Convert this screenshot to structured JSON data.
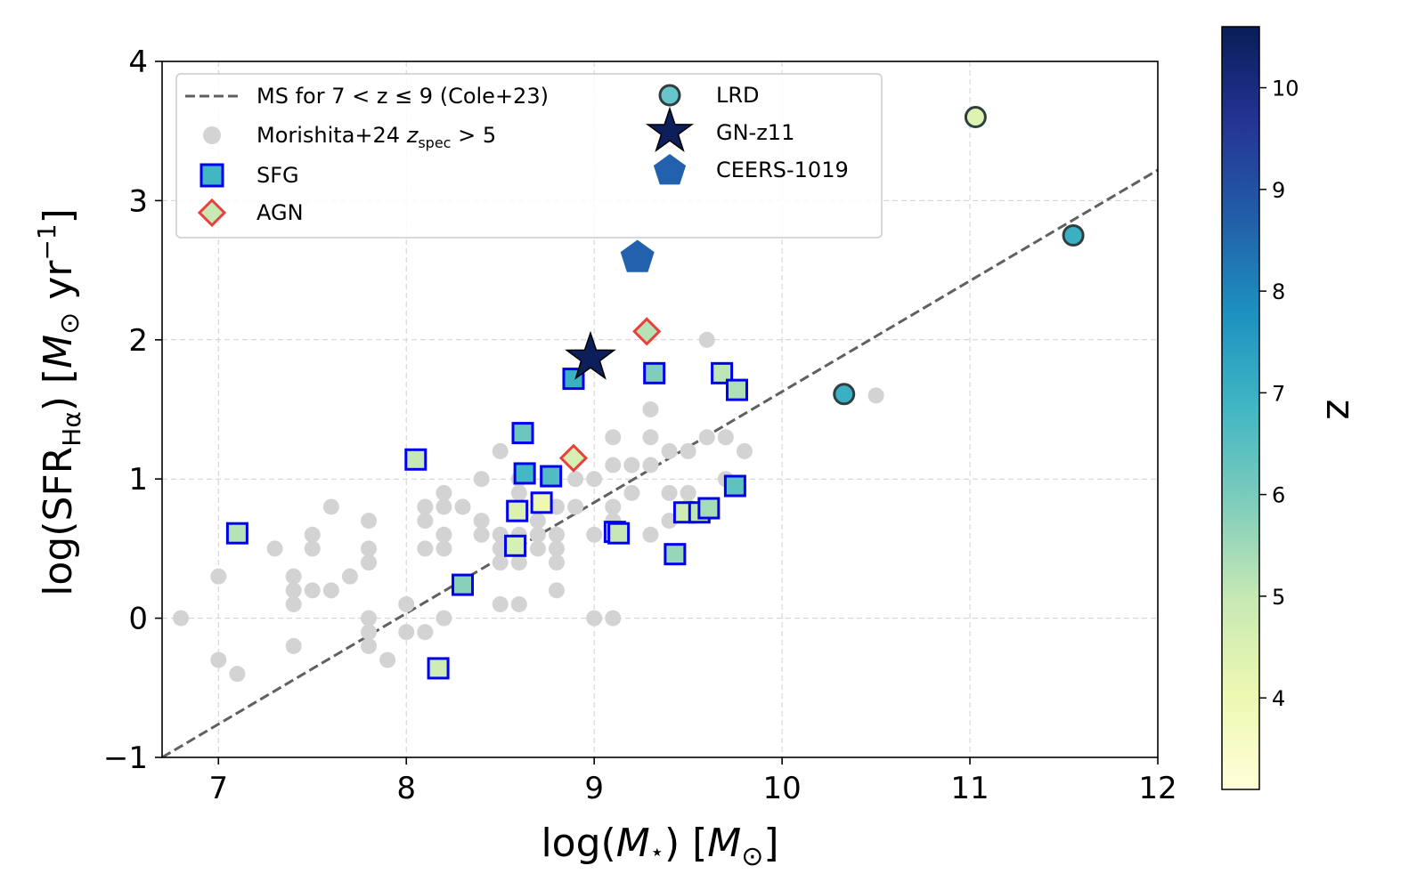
{
  "chart_data": {
    "type": "scatter",
    "xlabel": "log(M⋆) [M⊙]",
    "ylabel": "log(SFR_Hα) [M⊙ yr⁻¹]",
    "xlabel_parts": {
      "a": "log(",
      "b": "M",
      "c": "⋆",
      "d": ") [",
      "e": "M",
      "f": "⊙",
      "g": "]"
    },
    "ylabel_parts": {
      "a": "log(SFR",
      "b": "Hα",
      "c": ") [",
      "d": "M",
      "e": "⊙",
      "f": " yr",
      "g": "−1",
      "h": "]"
    },
    "xlim": [
      6.7,
      12.0
    ],
    "ylim": [
      -1.0,
      4.0
    ],
    "xticks": [
      7,
      8,
      9,
      10,
      11,
      12
    ],
    "yticks": [
      -1,
      0,
      1,
      2,
      3,
      4
    ],
    "xtick_labels": [
      "7",
      "8",
      "9",
      "10",
      "11",
      "12"
    ],
    "ytick_labels": [
      "−1",
      "0",
      "1",
      "2",
      "3",
      "4"
    ],
    "grid": true,
    "legend_position": "upper-left",
    "colorbar": {
      "label": "z",
      "range": [
        3.1,
        10.6
      ],
      "ticks": [
        4,
        5,
        6,
        7,
        8,
        9,
        10
      ],
      "tick_labels": [
        "4",
        "5",
        "6",
        "7",
        "8",
        "9",
        "10"
      ],
      "colormap": "YlGnBu",
      "stops": [
        "#ffffd9",
        "#edf8b1",
        "#c7e9b4",
        "#7fcdbb",
        "#41b6c4",
        "#1d91c0",
        "#225ea8",
        "#253494",
        "#081d58"
      ]
    },
    "main_sequence": {
      "label": "MS for 7 < z ≤ 9 (Cole+23)",
      "x": [
        6.7,
        12.0
      ],
      "y": [
        -1.0,
        3.22
      ],
      "color": "#606060"
    },
    "legend": [
      {
        "key": "ms",
        "label": "MS for 7 < z ≤ 9 (Cole+23)"
      },
      {
        "key": "morishita",
        "label": "Morishita+24",
        "label_z": "z",
        "label_sub": "spec",
        "label_tail": " > 5"
      },
      {
        "key": "sfg",
        "label": "SFG"
      },
      {
        "key": "agn",
        "label": "AGN"
      },
      {
        "key": "lrd",
        "label": "LRD"
      },
      {
        "key": "gnz11",
        "label": "GN-z11"
      },
      {
        "key": "ceers",
        "label": "CEERS-1019"
      }
    ],
    "series": [
      {
        "name": "Morishita+24 zspec > 5",
        "marker": "circle",
        "color": "#d3d3d3",
        "points": [
          [
            6.8,
            0.0
          ],
          [
            7.0,
            0.3
          ],
          [
            7.0,
            -0.3
          ],
          [
            7.1,
            -0.4
          ],
          [
            7.3,
            0.5
          ],
          [
            7.4,
            0.3
          ],
          [
            7.4,
            0.2
          ],
          [
            7.4,
            0.1
          ],
          [
            7.4,
            -0.2
          ],
          [
            7.5,
            0.6
          ],
          [
            7.5,
            0.5
          ],
          [
            7.5,
            0.2
          ],
          [
            7.6,
            0.8
          ],
          [
            7.6,
            0.2
          ],
          [
            7.7,
            0.3
          ],
          [
            7.8,
            0.7
          ],
          [
            7.8,
            0.5
          ],
          [
            7.8,
            0.4
          ],
          [
            7.8,
            0.0
          ],
          [
            7.8,
            -0.1
          ],
          [
            7.8,
            -0.2
          ],
          [
            7.9,
            -0.3
          ],
          [
            8.0,
            0.1
          ],
          [
            8.0,
            -0.1
          ],
          [
            8.1,
            0.8
          ],
          [
            8.1,
            0.7
          ],
          [
            8.1,
            0.5
          ],
          [
            8.1,
            -0.1
          ],
          [
            8.2,
            0.9
          ],
          [
            8.2,
            0.8
          ],
          [
            8.2,
            0.6
          ],
          [
            8.2,
            0.5
          ],
          [
            8.2,
            0.0
          ],
          [
            8.3,
            0.8
          ],
          [
            8.4,
            1.0
          ],
          [
            8.4,
            0.7
          ],
          [
            8.4,
            0.6
          ],
          [
            8.5,
            1.2
          ],
          [
            8.5,
            0.6
          ],
          [
            8.5,
            0.5
          ],
          [
            8.5,
            0.4
          ],
          [
            8.5,
            0.1
          ],
          [
            8.6,
            1.0
          ],
          [
            8.6,
            0.9
          ],
          [
            8.6,
            0.6
          ],
          [
            8.6,
            0.4
          ],
          [
            8.6,
            0.1
          ],
          [
            8.7,
            0.7
          ],
          [
            8.7,
            0.6
          ],
          [
            8.7,
            0.5
          ],
          [
            8.8,
            0.8
          ],
          [
            8.8,
            0.6
          ],
          [
            8.8,
            0.5
          ],
          [
            8.8,
            0.4
          ],
          [
            8.8,
            0.2
          ],
          [
            8.9,
            1.0
          ],
          [
            8.9,
            0.8
          ],
          [
            9.0,
            1.0
          ],
          [
            9.0,
            0.6
          ],
          [
            9.0,
            0.0
          ],
          [
            9.1,
            1.3
          ],
          [
            9.1,
            1.1
          ],
          [
            9.1,
            0.8
          ],
          [
            9.1,
            0.7
          ],
          [
            9.1,
            0.0
          ],
          [
            9.2,
            1.1
          ],
          [
            9.2,
            0.9
          ],
          [
            9.3,
            1.5
          ],
          [
            9.3,
            1.3
          ],
          [
            9.3,
            1.1
          ],
          [
            9.3,
            0.6
          ],
          [
            9.4,
            1.2
          ],
          [
            9.4,
            0.9
          ],
          [
            9.4,
            0.7
          ],
          [
            9.5,
            1.2
          ],
          [
            9.5,
            0.9
          ],
          [
            9.5,
            0.8
          ],
          [
            9.6,
            2.0
          ],
          [
            9.6,
            1.3
          ],
          [
            9.7,
            1.3
          ],
          [
            9.7,
            1.0
          ],
          [
            9.8,
            1.2
          ],
          [
            10.5,
            1.6
          ]
        ]
      },
      {
        "name": "SFG",
        "marker": "square",
        "edge_color": "#0000ee",
        "points": [
          [
            7.1,
            0.61,
            5.2
          ],
          [
            8.05,
            1.14,
            5.0
          ],
          [
            8.17,
            -0.36,
            4.8
          ],
          [
            8.3,
            0.24,
            5.8
          ],
          [
            8.58,
            0.52,
            4.6
          ],
          [
            8.59,
            0.77,
            4.5
          ],
          [
            8.62,
            1.33,
            6.2
          ],
          [
            8.63,
            1.04,
            6.8
          ],
          [
            8.72,
            0.83,
            4.0
          ],
          [
            8.77,
            1.02,
            6.6
          ],
          [
            8.89,
            1.72,
            7.0
          ],
          [
            9.11,
            0.62,
            4.4
          ],
          [
            9.13,
            0.61,
            5.0
          ],
          [
            9.32,
            1.76,
            5.9
          ],
          [
            9.43,
            0.46,
            5.6
          ],
          [
            9.48,
            0.76,
            4.8
          ],
          [
            9.56,
            0.76,
            5.1
          ],
          [
            9.61,
            0.79,
            5.4
          ],
          [
            9.68,
            1.76,
            5.1
          ],
          [
            9.75,
            0.95,
            6.4
          ],
          [
            9.76,
            1.64,
            5.3
          ]
        ]
      },
      {
        "name": "AGN",
        "marker": "diamond",
        "edge_color": "#e8413c",
        "points": [
          [
            8.89,
            1.15,
            4.6
          ],
          [
            9.28,
            2.06,
            5.2
          ]
        ]
      },
      {
        "name": "LRD",
        "marker": "circle",
        "edge_color": "#2f3f3f",
        "points": [
          [
            10.33,
            1.61,
            7.0
          ],
          [
            11.03,
            3.6,
            4.4
          ],
          [
            11.55,
            2.75,
            7.0
          ]
        ]
      },
      {
        "name": "GN-z11",
        "marker": "star",
        "color": "#0d1f5a",
        "points": [
          [
            8.98,
            1.87,
            10.6
          ]
        ]
      },
      {
        "name": "CEERS-1019",
        "marker": "pentagon",
        "color": "#2161ad",
        "points": [
          [
            9.23,
            2.59,
            8.7
          ]
        ]
      }
    ]
  }
}
